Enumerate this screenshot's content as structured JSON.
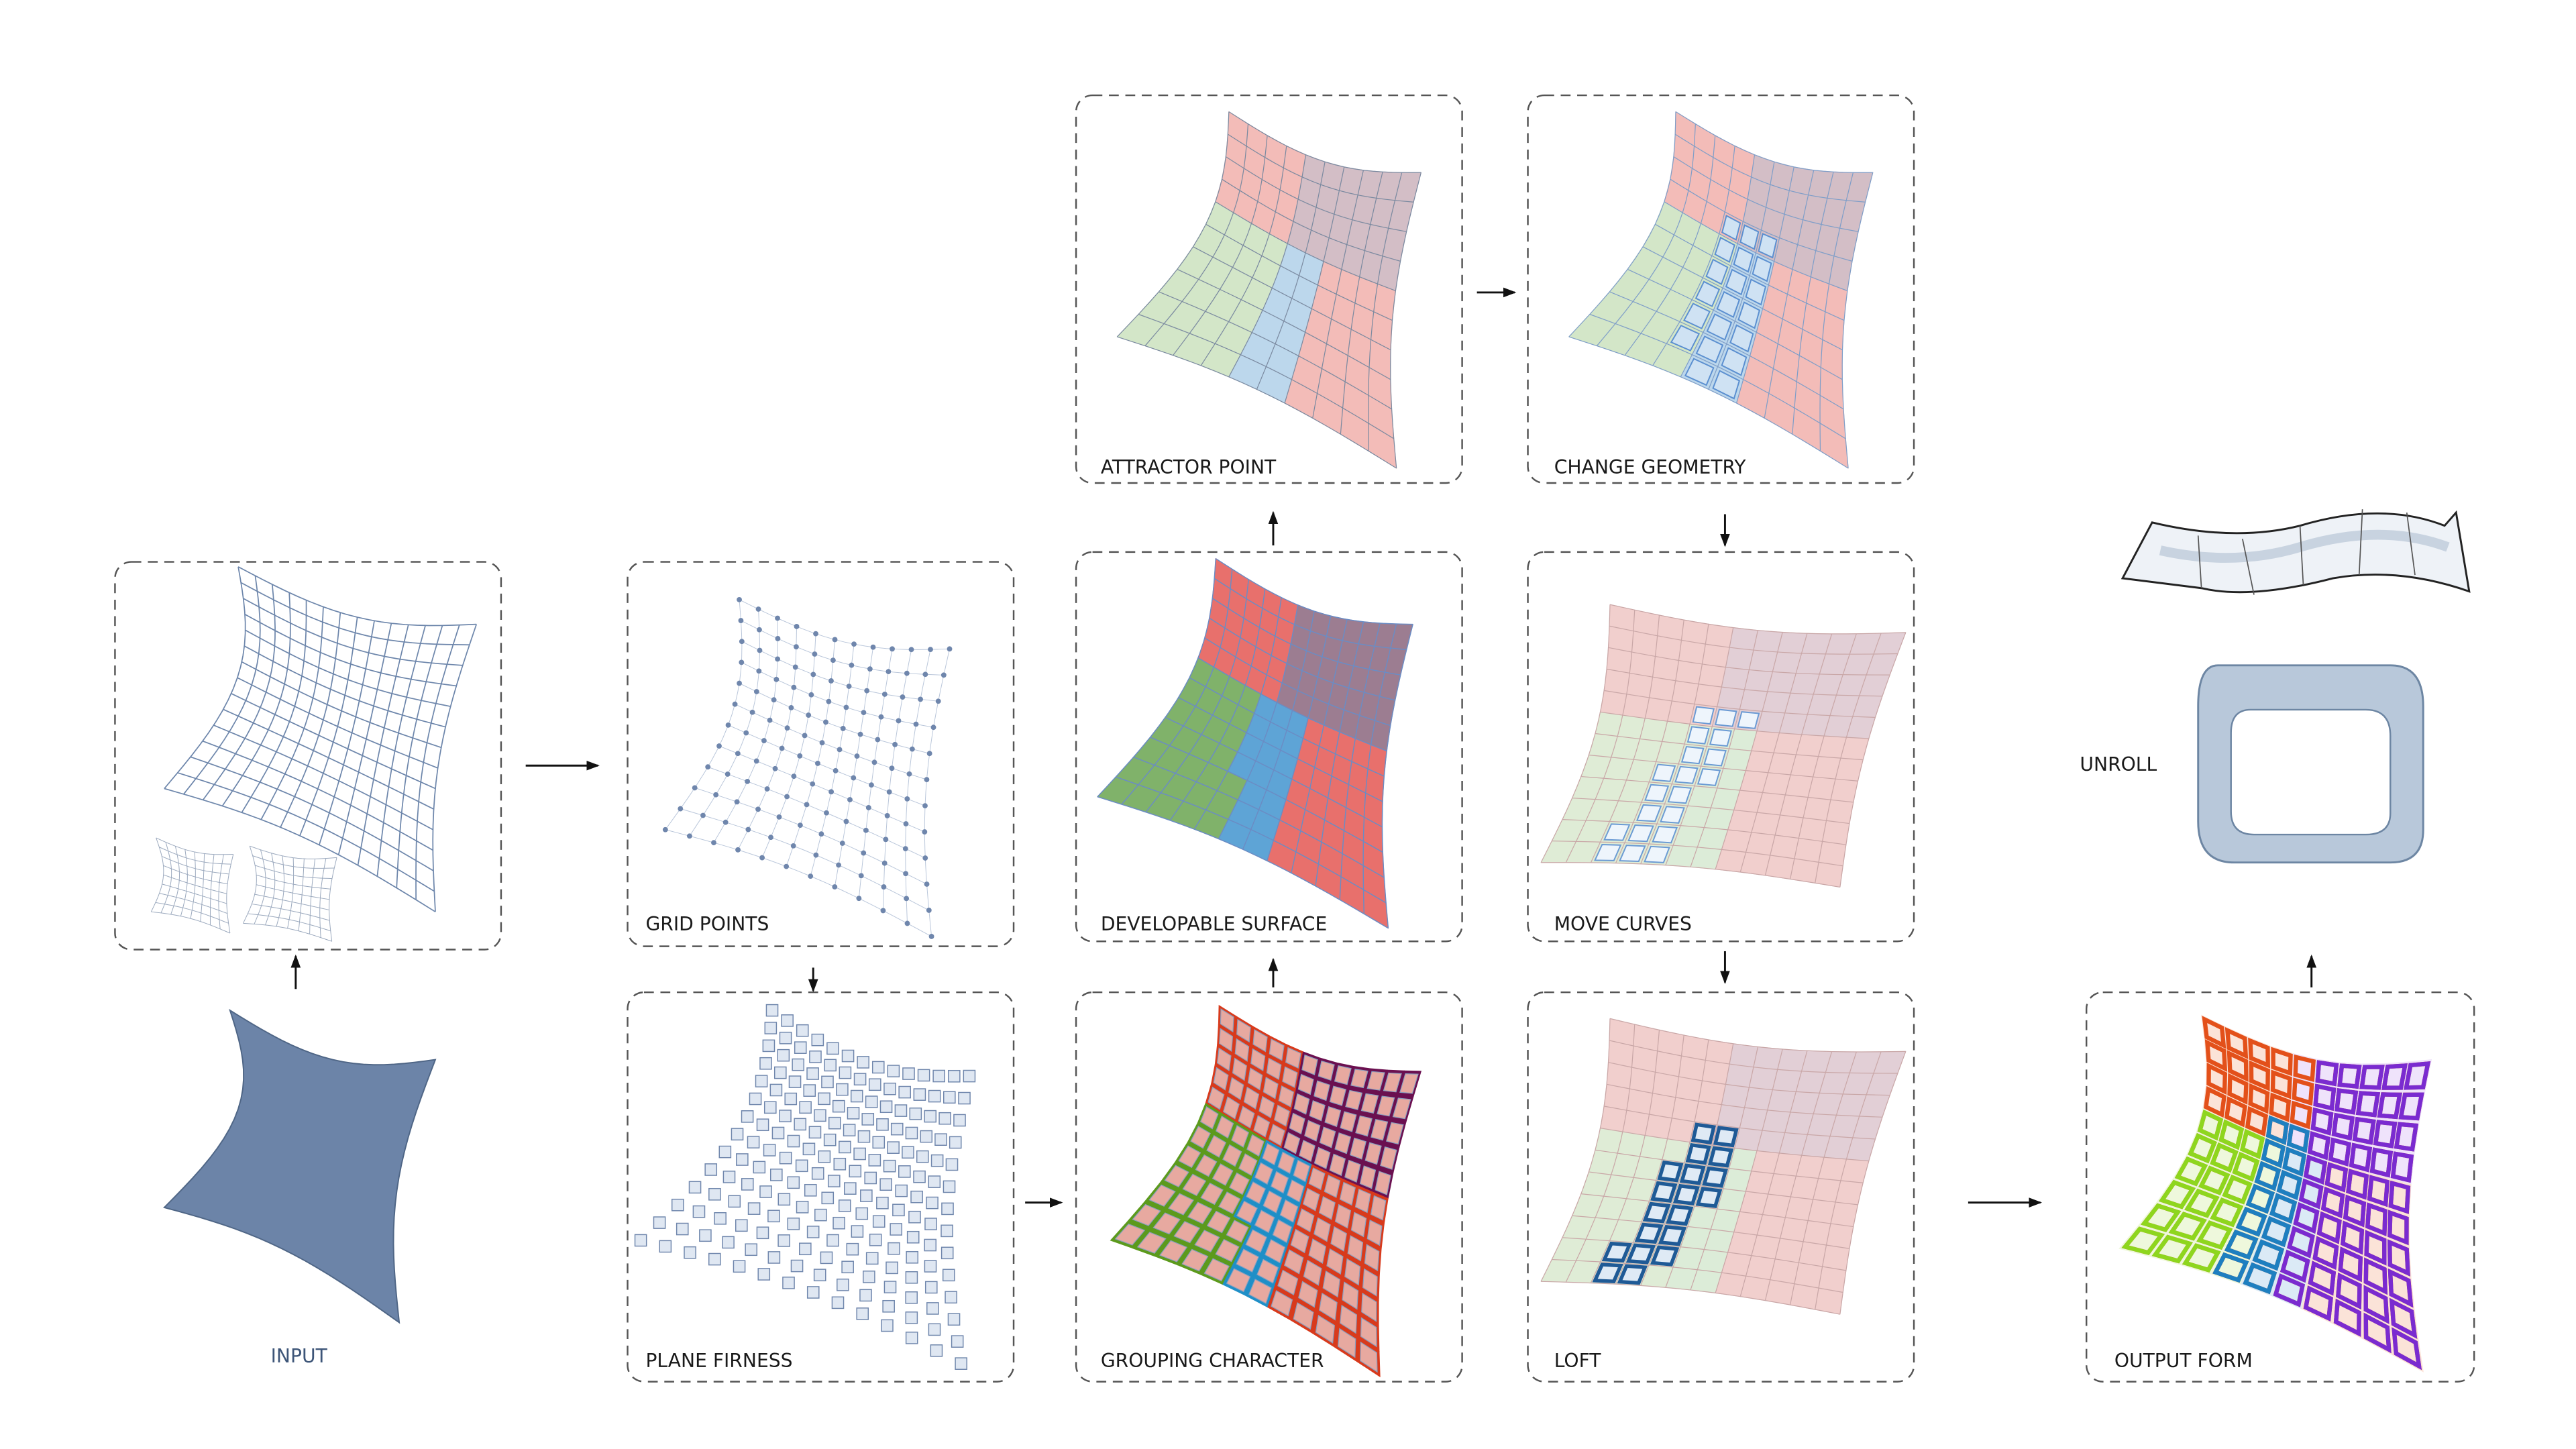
{
  "panels": [
    {
      "label": "INPUT"
    },
    {
      "label": "GRID POINTS"
    },
    {
      "label": "PLANE FIRNESS"
    },
    {
      "label": "ATTRACTOR POINT"
    },
    {
      "label": "DEVELOPABLE SURFACE"
    },
    {
      "label": "GROUPING CHARACTER"
    },
    {
      "label": "CHANGE GEOMETRY"
    },
    {
      "label": "MOVE CURVES"
    },
    {
      "label": "LOFT"
    },
    {
      "label": "UNROLL"
    },
    {
      "label": "OUTPUT FORM"
    }
  ]
}
